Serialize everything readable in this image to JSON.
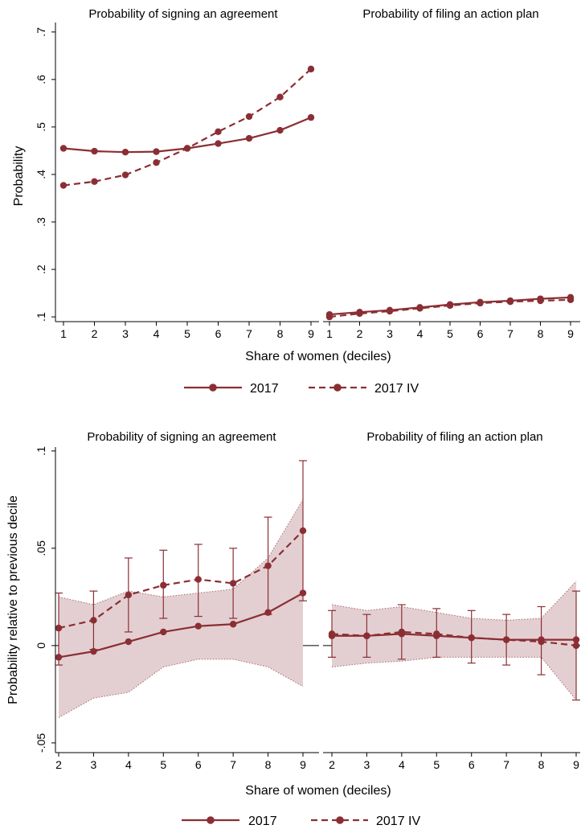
{
  "colors": {
    "series": "#8b2e34",
    "band_fill": "#e3cfd1",
    "band_edge": "#a86a70",
    "axis": "#000000"
  },
  "figure_top": {
    "ylabel": "Probability",
    "xlabel": "Share of women (deciles)",
    "legend": [
      {
        "name": "2017",
        "style": "solid-circle"
      },
      {
        "name": "2017 IV",
        "style": "dashed-circle"
      }
    ]
  },
  "figure_bottom": {
    "ylabel": "Probability relative to previous decile",
    "xlabel": "Share of women (deciles)",
    "legend": [
      {
        "name": "2017",
        "style": "solid-circle"
      },
      {
        "name": "2017 IV",
        "style": "dashed-circle"
      }
    ]
  },
  "chart_data": [
    {
      "type": "line",
      "title": "Probability of signing an agreement",
      "xlabel": "Share of women (deciles)",
      "ylabel": "Probability",
      "ylim": [
        0.09,
        0.72
      ],
      "yticks": [
        0.1,
        0.2,
        0.3,
        0.4,
        0.5,
        0.6,
        0.7
      ],
      "ytick_labels": [
        ".1",
        ".2",
        ".3",
        ".4",
        ".5",
        ".6",
        ".7"
      ],
      "x": [
        1,
        2,
        3,
        4,
        5,
        6,
        7,
        8,
        9
      ],
      "series": [
        {
          "name": "2017",
          "style": "solid",
          "values": [
            0.455,
            0.449,
            0.447,
            0.448,
            0.455,
            0.465,
            0.476,
            0.493,
            0.52
          ]
        },
        {
          "name": "2017 IV",
          "style": "dashed",
          "values": [
            0.377,
            0.385,
            0.399,
            0.425,
            0.455,
            0.49,
            0.522,
            0.563,
            0.622
          ]
        }
      ]
    },
    {
      "type": "line",
      "title": "Probability of filing an action plan",
      "xlabel": "Share of women (deciles)",
      "ylim": [
        0.09,
        0.72
      ],
      "x": [
        1,
        2,
        3,
        4,
        5,
        6,
        7,
        8,
        9
      ],
      "series": [
        {
          "name": "2017",
          "style": "solid",
          "values": [
            0.105,
            0.11,
            0.114,
            0.12,
            0.126,
            0.131,
            0.134,
            0.138,
            0.141
          ]
        },
        {
          "name": "2017 IV",
          "style": "dashed",
          "values": [
            0.1,
            0.107,
            0.112,
            0.118,
            0.124,
            0.129,
            0.132,
            0.134,
            0.136
          ]
        }
      ]
    },
    {
      "type": "line",
      "title": "Probability of signing an agreement",
      "xlabel": "Share of women (deciles)",
      "ylabel": "Probability relative to previous decile",
      "ylim": [
        -0.055,
        0.102
      ],
      "yticks": [
        -0.05,
        0,
        0.05,
        0.1
      ],
      "ytick_labels": [
        "-.05",
        "0",
        ".05",
        ".1"
      ],
      "zero_line": true,
      "x": [
        2,
        3,
        4,
        5,
        6,
        7,
        8,
        9
      ],
      "series": [
        {
          "name": "2017",
          "style": "solid",
          "values": [
            -0.006,
            -0.003,
            0.002,
            0.007,
            0.01,
            0.011,
            0.017,
            0.027
          ],
          "ci_band": {
            "lower": [
              -0.037,
              -0.027,
              -0.024,
              -0.011,
              -0.007,
              -0.007,
              -0.011,
              -0.021
            ],
            "upper": [
              0.025,
              0.021,
              0.028,
              0.025,
              0.027,
              0.029,
              0.045,
              0.075
            ]
          }
        },
        {
          "name": "2017 IV",
          "style": "dashed",
          "values": [
            0.009,
            0.013,
            0.026,
            0.031,
            0.034,
            0.032,
            0.041,
            0.059
          ],
          "error_bars": {
            "lower": [
              -0.01,
              -0.002,
              0.007,
              0.014,
              0.015,
              0.014,
              0.016,
              0.023
            ],
            "upper": [
              0.027,
              0.028,
              0.045,
              0.049,
              0.052,
              0.05,
              0.066,
              0.095
            ]
          }
        }
      ]
    },
    {
      "type": "line",
      "title": "Probability of filing an action plan",
      "xlabel": "Share of women (deciles)",
      "ylim": [
        -0.055,
        0.102
      ],
      "zero_line": true,
      "x": [
        2,
        3,
        4,
        5,
        6,
        7,
        8,
        9
      ],
      "series": [
        {
          "name": "2017",
          "style": "solid",
          "values": [
            0.005,
            0.005,
            0.006,
            0.005,
            0.004,
            0.003,
            0.003,
            0.003
          ],
          "ci_band": {
            "lower": [
              -0.011,
              -0.009,
              -0.008,
              -0.006,
              -0.006,
              -0.006,
              -0.006,
              -0.028
            ],
            "upper": [
              0.021,
              0.018,
              0.02,
              0.017,
              0.014,
              0.013,
              0.014,
              0.033
            ]
          }
        },
        {
          "name": "2017 IV",
          "style": "dashed",
          "values": [
            0.006,
            0.005,
            0.007,
            0.006,
            0.004,
            0.003,
            0.002,
            0.0
          ],
          "error_bars": {
            "lower": [
              -0.006,
              -0.006,
              -0.007,
              -0.006,
              -0.009,
              -0.01,
              -0.015,
              -0.028
            ],
            "upper": [
              0.018,
              0.016,
              0.021,
              0.019,
              0.018,
              0.016,
              0.02,
              0.028
            ]
          }
        }
      ]
    }
  ]
}
